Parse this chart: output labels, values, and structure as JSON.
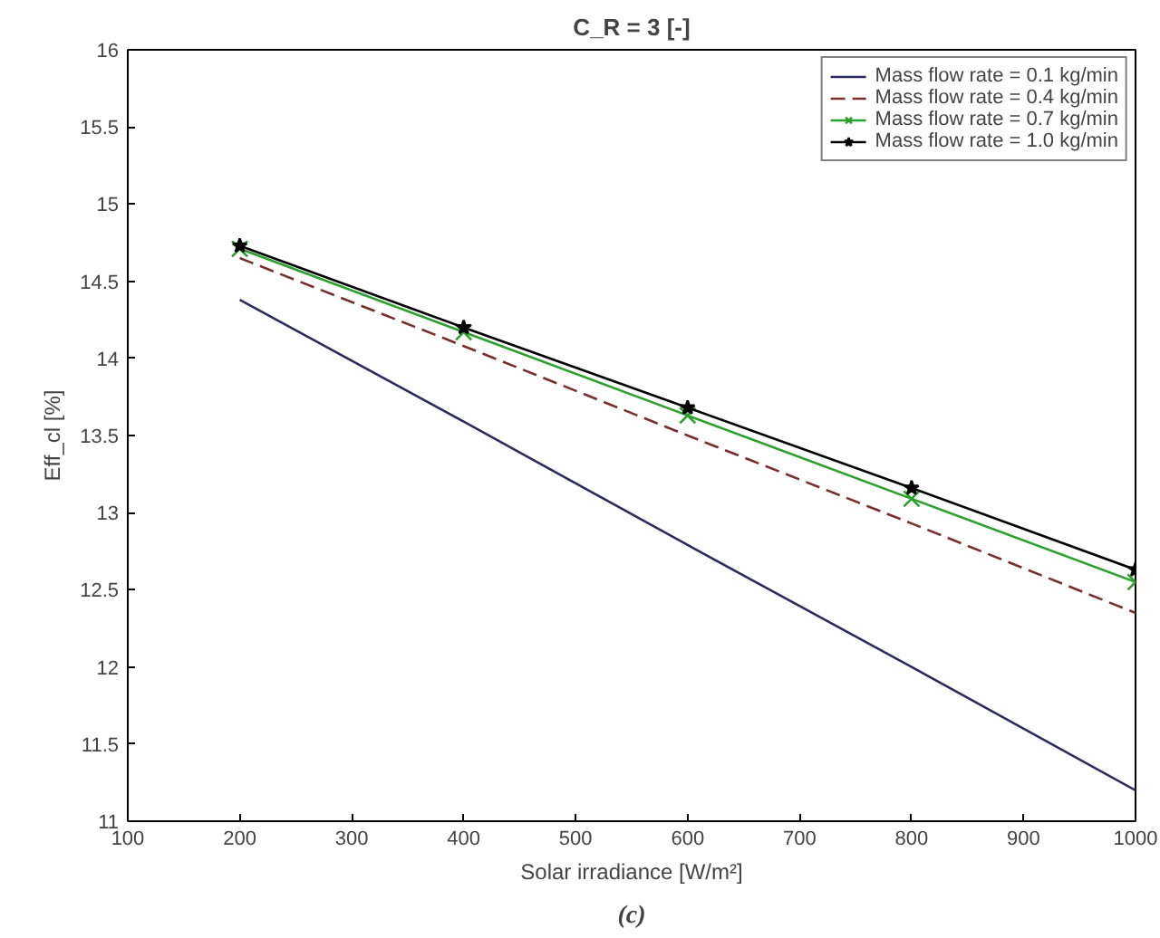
{
  "chart_data": {
    "type": "line",
    "title": "C_R = 3 [-]",
    "xlabel": "Solar irradiance [W/m²]",
    "ylabel": "Eff_cl [%]",
    "annotations": [
      "(c)"
    ],
    "x": [
      200,
      400,
      600,
      800,
      1000
    ],
    "series": [
      {
        "name": "Mass flow rate = 0.1 kg/min",
        "color": "#2b2b5e",
        "values": [
          14.38,
          13.59,
          12.79,
          12.0,
          11.2
        ],
        "marker": "none",
        "line_style": "solid"
      },
      {
        "name": "Mass flow rate = 0.4 kg/min",
        "color": "#7a2e2e",
        "values": [
          14.65,
          14.08,
          13.5,
          12.93,
          12.35
        ],
        "marker": "none",
        "line_style": "dashed"
      },
      {
        "name": "Mass flow rate = 0.7 kg/min",
        "color": "#2ca02c",
        "values": [
          14.71,
          14.17,
          13.63,
          13.09,
          12.55
        ],
        "marker": "cross",
        "line_style": "solid"
      },
      {
        "name": "Mass flow rate = 1.0 kg/min",
        "color": "#000000",
        "values": [
          14.73,
          14.2,
          13.68,
          13.16,
          12.63
        ],
        "marker": "star",
        "line_style": "solid"
      }
    ],
    "xlim": [
      100,
      1000
    ],
    "ylim": [
      11,
      16
    ],
    "xticks": [
      100,
      200,
      300,
      400,
      500,
      600,
      700,
      800,
      900,
      1000
    ],
    "yticks": [
      11,
      11.5,
      12,
      12.5,
      13,
      13.5,
      14,
      14.5,
      15,
      15.5,
      16
    ],
    "grid": false,
    "legend": "top right"
  }
}
